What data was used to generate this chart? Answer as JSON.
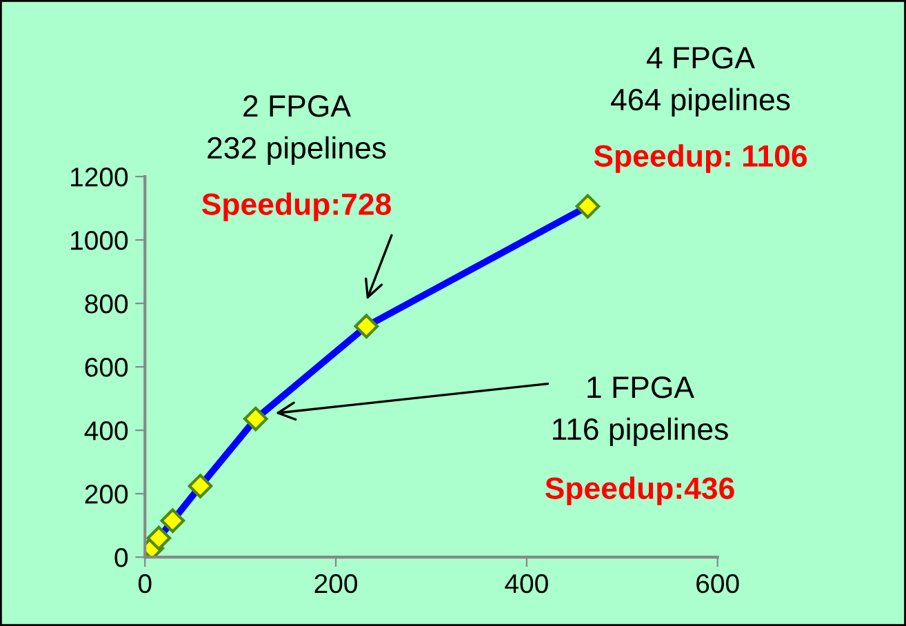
{
  "chart_data": {
    "type": "line",
    "x": [
      7.25,
      14.5,
      29,
      58,
      116,
      232,
      464
    ],
    "series": [
      {
        "color": "#0000ff",
        "values": [
          28,
          60,
          115,
          224,
          436,
          728,
          1106
        ]
      }
    ],
    "marker": "diamond",
    "line_style": "solid",
    "xlim": [
      0,
      600
    ],
    "xticks": [
      0,
      200,
      400,
      600
    ],
    "ylim": [
      0,
      1200
    ],
    "yticks": [
      0,
      200,
      400,
      600,
      800,
      1000,
      1200
    ],
    "grid": false,
    "legend": false,
    "annotations": [
      "2 FPGA\n232 pipelines",
      "Speedup:728",
      "4 FPGA\n464 pipelines",
      "Speedup: 1106",
      "1 FPGA\n116 pipelines",
      "Speedup:436"
    ]
  }
}
